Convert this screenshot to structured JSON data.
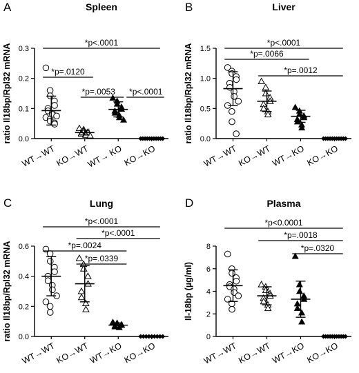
{
  "chart_data": [
    {
      "panel": "A",
      "type": "scatter",
      "title": "Spleen",
      "ylabel": "ratio Il18bp/Rpl32 mRNA",
      "ylim": [
        0,
        0.3
      ],
      "yticks": [
        "0.0",
        "0.1",
        "0.2",
        "0.3"
      ],
      "categories": [
        "WT→WT",
        "KO→WT",
        "WT→ KO",
        "KO→KO"
      ],
      "series": [
        {
          "marker": "open-circle",
          "mean": 0.093,
          "sd": 0.048,
          "values": [
            0.235,
            0.16,
            0.142,
            0.125,
            0.11,
            0.1,
            0.092,
            0.085,
            0.08,
            0.075,
            0.07,
            0.065,
            0.058,
            0.052,
            0.048
          ]
        },
        {
          "marker": "open-triangle",
          "mean": 0.02,
          "sd": 0.008,
          "values": [
            0.034,
            0.03,
            0.025,
            0.022,
            0.02,
            0.018,
            0.016,
            0.014,
            0.012,
            0.01
          ]
        },
        {
          "marker": "filled-triangle",
          "mean": 0.097,
          "sd": 0.025,
          "values": [
            0.135,
            0.125,
            0.115,
            0.105,
            0.098,
            0.092,
            0.085,
            0.078,
            0.07,
            0.062
          ]
        },
        {
          "marker": "filled-diamond",
          "mean": 0.0,
          "sd": 0.0,
          "values": [
            0,
            0,
            0,
            0,
            0,
            0,
            0,
            0,
            0,
            0,
            0
          ]
        }
      ],
      "comparisons": [
        {
          "from": 0,
          "to": 3,
          "label": "*p<.0001"
        },
        {
          "from": 0,
          "to": 1,
          "label": "*p=.0120"
        },
        {
          "from": 1,
          "to": 2,
          "label": "*p=.0053"
        },
        {
          "from": 2,
          "to": 3,
          "label": "*p<.0001"
        }
      ]
    },
    {
      "panel": "B",
      "type": "scatter",
      "title": "Liver",
      "ylabel": "ratio Il18bp/Rpl32 mRNA",
      "ylim": [
        0,
        1.5
      ],
      "yticks": [
        "0.0",
        "0.5",
        "1.0",
        "1.5"
      ],
      "categories": [
        "WT→WT",
        "KO→WT",
        "WT→KO",
        "KO→KO"
      ],
      "series": [
        {
          "marker": "open-circle",
          "mean": 0.83,
          "sd": 0.28,
          "values": [
            1.18,
            1.12,
            1.08,
            1.03,
            0.98,
            0.92,
            0.85,
            0.78,
            0.7,
            0.62,
            0.55,
            0.45,
            0.28,
            0.08
          ]
        },
        {
          "marker": "open-triangle",
          "mean": 0.62,
          "sd": 0.17,
          "values": [
            0.95,
            0.85,
            0.75,
            0.68,
            0.62,
            0.57,
            0.5,
            0.45,
            0.4
          ]
        },
        {
          "marker": "filled-triangle",
          "mean": 0.37,
          "sd": 0.1,
          "values": [
            0.52,
            0.46,
            0.41,
            0.38,
            0.35,
            0.32,
            0.28,
            0.23,
            0.18
          ]
        },
        {
          "marker": "filled-diamond",
          "mean": 0.0,
          "sd": 0.0,
          "values": [
            0,
            0,
            0,
            0,
            0,
            0,
            0,
            0,
            0,
            0,
            0
          ]
        }
      ],
      "comparisons": [
        {
          "from": 0,
          "to": 3,
          "label": "*p<.0001"
        },
        {
          "from": 0,
          "to": 2,
          "label": "*p=.0066"
        },
        {
          "from": 1,
          "to": 3,
          "label": "*p=.0012"
        }
      ]
    },
    {
      "panel": "C",
      "type": "scatter",
      "title": "Lung",
      "ylabel": "ratio Il18bp/Rpl32 mRNA",
      "ylim": [
        0,
        0.6
      ],
      "yticks": [
        "0.0",
        "0.2",
        "0.4",
        "0.6"
      ],
      "categories": [
        "WT→WT",
        "KO→WT",
        "WT→KO",
        "KO→KO"
      ],
      "series": [
        {
          "marker": "open-circle",
          "mean": 0.4,
          "sd": 0.13,
          "values": [
            0.58,
            0.55,
            0.5,
            0.46,
            0.43,
            0.4,
            0.37,
            0.34,
            0.31,
            0.27,
            0.23,
            0.2,
            0.16
          ]
        },
        {
          "marker": "open-triangle",
          "mean": 0.35,
          "sd": 0.12,
          "values": [
            0.52,
            0.48,
            0.45,
            0.4,
            0.35,
            0.3,
            0.26,
            0.22,
            0.18
          ]
        },
        {
          "marker": "filled-triangle",
          "mean": 0.075,
          "sd": 0.015,
          "values": [
            0.095,
            0.09,
            0.085,
            0.08,
            0.075,
            0.07,
            0.065,
            0.06
          ]
        },
        {
          "marker": "filled-diamond",
          "mean": 0.0,
          "sd": 0.0,
          "values": [
            0,
            0,
            0,
            0,
            0,
            0,
            0,
            0,
            0
          ]
        }
      ],
      "comparisons": [
        {
          "from": 0,
          "to": 3,
          "label": "*p<.0001"
        },
        {
          "from": 1,
          "to": 3,
          "label": "*p<.0001"
        },
        {
          "from": 0,
          "to": 2,
          "label": "*p=.0024"
        },
        {
          "from": 1,
          "to": 2,
          "label": "*p=.0339"
        }
      ]
    },
    {
      "panel": "D",
      "type": "scatter",
      "title": "Plasma",
      "ylabel": "Il-18bp (µg/ml)",
      "ylim": [
        0,
        8
      ],
      "yticks": [
        "0",
        "2",
        "4",
        "6",
        "8"
      ],
      "categories": [
        "WT→WT",
        "KO→WT",
        "WT→KO",
        "KO→KO"
      ],
      "series": [
        {
          "marker": "open-circle",
          "mean": 4.5,
          "sd": 1.4,
          "values": [
            7.3,
            6.0,
            5.6,
            5.2,
            4.9,
            4.6,
            4.4,
            4.2,
            3.9,
            3.6,
            3.3,
            2.9,
            2.4
          ]
        },
        {
          "marker": "open-triangle",
          "mean": 3.6,
          "sd": 0.8,
          "values": [
            4.6,
            4.4,
            4.1,
            3.8,
            3.6,
            3.4,
            3.1,
            2.8,
            2.5
          ]
        },
        {
          "marker": "filled-triangle",
          "mean": 3.3,
          "sd": 1.6,
          "values": [
            7.1,
            4.6,
            4.0,
            3.6,
            3.3,
            2.9,
            2.5,
            2.1,
            1.3
          ]
        },
        {
          "marker": "filled-diamond",
          "mean": 0.0,
          "sd": 0.0,
          "values": [
            0,
            0,
            0,
            0,
            0,
            0,
            0,
            0,
            0,
            0,
            0
          ]
        }
      ],
      "comparisons": [
        {
          "from": 0,
          "to": 3,
          "label": "*p<0.0001"
        },
        {
          "from": 1,
          "to": 3,
          "label": "*p=.0018"
        },
        {
          "from": 2,
          "to": 3,
          "label": "*p=.0320"
        }
      ]
    }
  ]
}
